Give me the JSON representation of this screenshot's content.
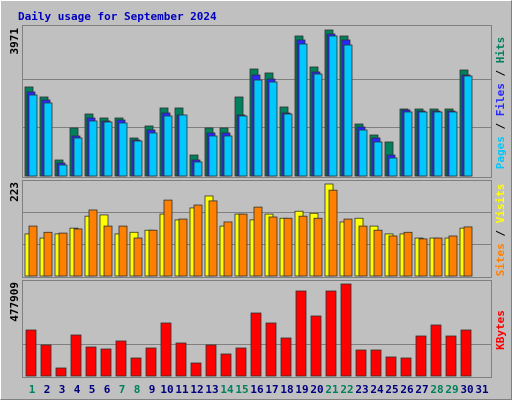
{
  "chart_data": [
    {
      "type": "bar",
      "title": "Daily usage for September 2024",
      "ylim": [
        0,
        3971
      ],
      "yticks": [
        3971
      ],
      "gridlines": [
        1324,
        2647
      ],
      "separator": " / ",
      "series": [
        {
          "name": "Hits",
          "color": "#00805c",
          "values": [
            2421,
            2149,
            435,
            1306,
            1686,
            1578,
            1578,
            1034,
            1360,
            1850,
            1850,
            571,
            1306,
            1306,
            2149,
            2910,
            2802,
            1877,
            3808,
            2965,
            3971,
            3808,
            1414,
            1115,
            925,
            1822,
            1822,
            1822,
            1822,
            2883,
            0
          ]
        },
        {
          "name": "Files",
          "color": "#2828ff",
          "values": [
            2285,
            2067,
            354,
            1088,
            1578,
            1496,
            1523,
            979,
            1251,
            1714,
            1659,
            435,
            1170,
            1170,
            1659,
            2747,
            2638,
            1714,
            3699,
            2829,
            3862,
            3699,
            1333,
            1034,
            571,
            1795,
            1768,
            1768,
            1768,
            2747,
            0
          ]
        },
        {
          "name": "Pages",
          "color": "#00c8ff",
          "values": [
            2203,
            1986,
            299,
            1034,
            1496,
            1469,
            1442,
            952,
            1170,
            1632,
            1659,
            381,
            1088,
            1088,
            1632,
            2611,
            2557,
            1686,
            3590,
            2774,
            3808,
            3563,
            1251,
            925,
            490,
            1741,
            1741,
            1741,
            1741,
            2720,
            0
          ]
        }
      ]
    },
    {
      "type": "bar",
      "ylim": [
        0,
        223
      ],
      "yticks": [
        223
      ],
      "gridlines": [
        77,
        155
      ],
      "separator": " / ",
      "series": [
        {
          "name": "Visits",
          "color": "#ffff00",
          "values": [
            102,
            92,
            102,
            116,
            145,
            148,
            102,
            106,
            111,
            150,
            136,
            165,
            194,
            121,
            150,
            136,
            150,
            140,
            157,
            152,
            223,
            131,
            140,
            121,
            102,
            102,
            92,
            92,
            92,
            116,
            0
          ]
        },
        {
          "name": "Sites",
          "color": "#ff8000",
          "values": [
            121,
            106,
            104,
            114,
            160,
            121,
            121,
            92,
            111,
            184,
            138,
            172,
            182,
            131,
            150,
            167,
            143,
            140,
            145,
            140,
            208,
            138,
            121,
            111,
            97,
            106,
            90,
            92,
            97,
            119,
            0
          ]
        }
      ]
    },
    {
      "type": "bar",
      "ylim": [
        0,
        477909
      ],
      "yticks": [
        477909
      ],
      "gridlines": [
        166240
      ],
      "separator": " / ",
      "categories": [
        "1",
        "2",
        "3",
        "4",
        "5",
        "6",
        "7",
        "8",
        "9",
        "10",
        "11",
        "12",
        "13",
        "14",
        "15",
        "16",
        "17",
        "18",
        "19",
        "20",
        "21",
        "22",
        "23",
        "24",
        "25",
        "26",
        "27",
        "28",
        "29",
        "30",
        "31"
      ],
      "label_color": "#00007f",
      "highlight": [
        0,
        6,
        7,
        13,
        14,
        20,
        21,
        27,
        28
      ],
      "highlight_color": "#00805c",
      "series": [
        {
          "name": "KBytes",
          "color": "#ff0000",
          "values": [
            238970,
            161045,
            41560,
            212995,
            150655,
            140265,
            181825,
            93510,
            145460,
            275335,
            171435,
            67535,
            161045,
            114290,
            145460,
            327285,
            275335,
            197410,
            441575,
            311700,
            441575,
            477909,
            135070,
            135070,
            98705,
            93510,
            207800,
            264945,
            207800,
            238970,
            0
          ]
        }
      ]
    }
  ]
}
